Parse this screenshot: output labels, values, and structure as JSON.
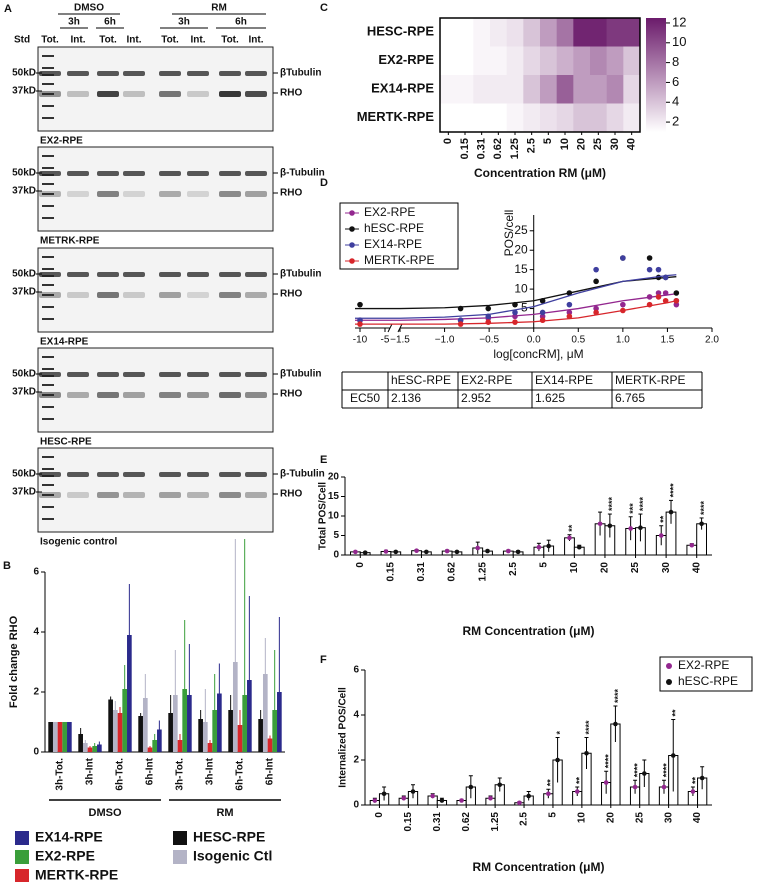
{
  "panel_a": {
    "letter": "A",
    "groups": [
      "DMSO",
      "RM"
    ],
    "times": [
      "3h",
      "6h",
      "3h",
      "6h"
    ],
    "lanes": [
      "Std",
      "Tot.",
      "Int.",
      "Tot.",
      "Int.",
      "Tot.",
      "Int.",
      "Tot.",
      "Int."
    ],
    "blots": [
      {
        "markers": [
          "50kD",
          "37kD"
        ],
        "bands": [
          "βTubulin",
          "RHO"
        ],
        "caption": "EX2-RPE"
      },
      {
        "markers": [
          "50kD",
          "37kD"
        ],
        "bands": [
          "β-Tubulin",
          "RHO"
        ],
        "caption": "METRK-RPE"
      },
      {
        "markers": [
          "50kD",
          "37kD"
        ],
        "bands": [
          "βTubulin",
          "RHO"
        ],
        "caption": "EX14-RPE"
      },
      {
        "markers": [
          "50kD",
          "37kD"
        ],
        "bands": [
          "βTubulin",
          "RHO"
        ],
        "caption": "HESC-RPE"
      },
      {
        "markers": [
          "50kD",
          "37kD"
        ],
        "bands": [
          "β-Tubulin",
          "RHO"
        ],
        "caption": "Isogenic control"
      }
    ]
  },
  "chart_data": [
    {
      "letter": "B",
      "type": "grouped_bar",
      "ylabel": "Fold change RHO",
      "categories": [
        "3h-Tot.",
        "3h-Int",
        "6h-Tot.",
        "6h-Int",
        "3h-Tot.",
        "3h-Int",
        "6h-Tot.",
        "6h-Int"
      ],
      "groups": [
        "DMSO",
        "RM"
      ],
      "ylim": [
        0,
        6
      ],
      "yticks": [
        0,
        2,
        4,
        6
      ],
      "series": [
        {
          "name": "HESC-RPE",
          "color": "#111111",
          "values": [
            1,
            0.6,
            1.75,
            1.2,
            1.3,
            1.1,
            1.4,
            1.1
          ],
          "errors": [
            0,
            0.2,
            0.1,
            0.1,
            0.6,
            0.3,
            0.5,
            0.3
          ]
        },
        {
          "name": "Isogenic Ctl",
          "color": "#b3b3c6",
          "values": [
            1,
            0.3,
            1.4,
            1.8,
            1.9,
            1.0,
            3.0,
            2.6
          ],
          "errors": [
            0,
            0.1,
            0.3,
            0.8,
            1.5,
            1.1,
            4.1,
            1.2
          ]
        },
        {
          "name": "MERTK-RPE",
          "color": "#d7262b",
          "values": [
            1,
            0.15,
            1.3,
            0.15,
            0.4,
            0.3,
            0.9,
            0.45
          ],
          "errors": [
            0,
            0.05,
            0.2,
            0.05,
            0.2,
            0.1,
            0.5,
            0.1
          ]
        },
        {
          "name": "EX2-RPE",
          "color": "#3a9e3a",
          "values": [
            1,
            0.2,
            2.1,
            0.4,
            2.1,
            1.4,
            1.9,
            1.4
          ],
          "errors": [
            0,
            0.1,
            0.8,
            0.2,
            2.3,
            1.2,
            5.2,
            2.0
          ]
        },
        {
          "name": "EX14-RPE",
          "color": "#2b2a8c",
          "values": [
            1,
            0.25,
            3.9,
            0.75,
            1.9,
            1.95,
            2.4,
            2.0
          ],
          "errors": [
            0,
            0.1,
            1.7,
            0.3,
            1.7,
            1.0,
            2.8,
            2.5
          ]
        }
      ]
    },
    {
      "letter": "C",
      "type": "heatmap",
      "xlabel": "Concentration RM (μM)",
      "categories": [
        "0",
        "0.15",
        "0.31",
        "0.62",
        "1.25",
        "2.5",
        "5",
        "10",
        "20",
        "25",
        "30",
        "40"
      ],
      "rows": [
        "HESC-RPE",
        "EX2-RPE",
        "EX14-RPE",
        "MERTK-RPE"
      ],
      "values": [
        [
          1,
          1,
          1.5,
          2,
          2.5,
          4,
          6,
          8,
          12,
          12,
          11,
          11
        ],
        [
          1,
          1,
          1.5,
          1.5,
          2,
          3,
          4,
          5,
          6,
          7,
          6,
          4
        ],
        [
          1.5,
          1.5,
          2,
          2,
          2,
          4,
          6,
          9,
          6,
          6,
          7,
          3
        ],
        [
          1,
          1,
          1,
          1,
          1.5,
          2,
          2.5,
          3,
          4,
          4,
          3,
          2
        ]
      ],
      "clim": [
        1,
        12.5
      ],
      "cticks": [
        2,
        4,
        6,
        8,
        10,
        12
      ],
      "colormap": [
        "#ffffff",
        "#6b1b6b"
      ]
    },
    {
      "letter": "D",
      "type": "dose_response",
      "xlabel": "log[concRM], μM",
      "ylabel": "POS/cell",
      "x": [
        -10,
        -0.82,
        -0.51,
        -0.21,
        0.1,
        0.4,
        0.7,
        1,
        1.3,
        1.4,
        1.48,
        1.6
      ],
      "fit_x": [
        -11,
        -4,
        -1.5,
        -1,
        -0.5,
        0,
        0.5,
        1,
        1.5,
        1.6
      ],
      "xlim": [
        -11,
        2
      ],
      "x_break": [
        -4,
        -1.5
      ],
      "xticks": [
        -10,
        -5,
        {
          "value": -1.5,
          "label": "−1.5"
        },
        {
          "value": -1,
          "label": "−1.0"
        },
        {
          "value": -0.5,
          "label": "−0.5"
        },
        {
          "value": 0,
          "label": "0.0"
        },
        0.5,
        {
          "value": 1,
          "label": "1.0"
        },
        1.5,
        {
          "value": 2,
          "label": "2.0"
        }
      ],
      "ylim": [
        0,
        27
      ],
      "yticks": [
        5,
        10,
        15,
        20,
        25
      ],
      "series": [
        {
          "name": "EX2-RPE",
          "color": "#93278f",
          "values": [
            2,
            2,
            2.5,
            3,
            3,
            4,
            5,
            6,
            8,
            9,
            9,
            6
          ],
          "fit": [
            2,
            2,
            2,
            2.2,
            2.6,
            3.5,
            5,
            7,
            8.5,
            8.8
          ]
        },
        {
          "name": "hESC-RPE",
          "color": "#111111",
          "values": [
            6,
            5,
            5,
            6,
            7,
            9,
            12,
            18,
            18,
            13,
            13,
            9
          ],
          "fit": [
            5,
            5,
            5,
            5.2,
            5.8,
            7,
            9.5,
            12,
            13,
            13.2
          ]
        },
        {
          "name": "EX14-RPE",
          "color": "#3f3f9f",
          "values": [
            2,
            2,
            3,
            4,
            4,
            6,
            15,
            18,
            15,
            15,
            13,
            7
          ],
          "fit": [
            2.5,
            2.5,
            2.5,
            2.8,
            3.5,
            5.5,
            9,
            12,
            13.5,
            13.7
          ]
        },
        {
          "name": "MERTK-RPE",
          "color": "#d7262b",
          "values": [
            1,
            1,
            1.5,
            1.5,
            2,
            3,
            4,
            4.5,
            6,
            8,
            7,
            7
          ],
          "fit": [
            1,
            1,
            1,
            1,
            1.2,
            1.6,
            2.6,
            4.5,
            6.5,
            7
          ]
        }
      ],
      "table": {
        "header": [
          "hESC-RPE",
          "EX2-RPE",
          "EX14-RPE",
          "MERTK-RPE"
        ],
        "row_label": "EC50",
        "values": [
          2.136,
          2.952,
          1.625,
          6.765
        ]
      }
    },
    {
      "letter": "E",
      "type": "dot_bar",
      "ylabel": "Total POS/Cell",
      "xlabel": "RM Concentration (μM)",
      "categories": [
        "0",
        "0.15",
        "0.31",
        "0.62",
        "1.25",
        "2.5",
        "5",
        "10",
        "20",
        "25",
        "30",
        "40"
      ],
      "ylim": [
        0,
        20
      ],
      "yticks": [
        0,
        5,
        10,
        15,
        20
      ],
      "series": [
        {
          "color": "#93278f",
          "values": [
            0.8,
            0.9,
            1.1,
            1.0,
            1.8,
            1.0,
            2.0,
            4.4,
            8.0,
            6.8,
            5.0,
            2.5
          ],
          "errors": [
            0.2,
            0.3,
            0.3,
            0.3,
            1.5,
            0.3,
            1.0,
            0.8,
            3,
            3,
            2.5,
            0.4
          ],
          "stars": [
            null,
            null,
            null,
            null,
            null,
            null,
            null,
            "**",
            null,
            "***",
            "**",
            null
          ]
        },
        {
          "color": "#111111",
          "values": [
            0.6,
            0.8,
            0.8,
            0.8,
            1.0,
            0.8,
            2.3,
            2.0,
            7.5,
            7.0,
            11.0,
            8.0
          ],
          "errors": [
            0.2,
            0.2,
            0.2,
            0.2,
            0.3,
            0.3,
            1.5,
            0.5,
            3,
            3.5,
            3,
            1.5
          ],
          "stars": [
            null,
            null,
            null,
            null,
            null,
            null,
            null,
            null,
            "****",
            "****",
            "****",
            "****"
          ]
        }
      ]
    },
    {
      "letter": "F",
      "type": "dot_bar",
      "ylabel": "Internalized POS/Cell",
      "xlabel": "RM Concentration (μM)",
      "legend": true,
      "categories": [
        "0",
        "0.15",
        "0.31",
        "0.62",
        "1.25",
        "2.5",
        "5",
        "10",
        "20",
        "25",
        "30",
        "40"
      ],
      "ylim": [
        0,
        6
      ],
      "yticks": [
        0,
        2,
        4,
        6
      ],
      "series": [
        {
          "name": "EX2-RPE",
          "color": "#93278f",
          "values": [
            0.2,
            0.3,
            0.4,
            0.2,
            0.3,
            0.1,
            0.5,
            0.6,
            1.0,
            0.8,
            0.8,
            0.6
          ],
          "errors": [
            0.1,
            0.1,
            0.1,
            0.05,
            0.1,
            0.05,
            0.2,
            0.2,
            0.5,
            0.3,
            0.3,
            0.2
          ],
          "stars": [
            null,
            null,
            null,
            null,
            null,
            null,
            "**",
            "**",
            "****",
            "****",
            "****",
            "**"
          ]
        },
        {
          "name": "hESC-RPE",
          "color": "#111111",
          "values": [
            0.5,
            0.6,
            0.2,
            0.8,
            0.9,
            0.4,
            2.0,
            2.3,
            3.6,
            1.4,
            2.2,
            1.2
          ],
          "errors": [
            0.3,
            0.3,
            0.1,
            0.5,
            0.3,
            0.2,
            1.0,
            0.7,
            0.8,
            0.6,
            1.6,
            0.5
          ],
          "stars": [
            null,
            null,
            null,
            null,
            null,
            null,
            "*",
            "****",
            "****",
            null,
            "**",
            null
          ]
        }
      ]
    }
  ]
}
